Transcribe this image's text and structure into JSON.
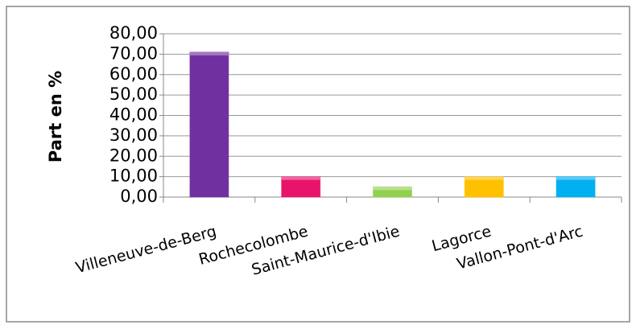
{
  "chart_data": {
    "type": "bar",
    "ylabel": "Part en %",
    "categories": [
      "Villeneuve-de-Berg",
      "Rochecolombe",
      "Saint-Maurice-d'Ibie",
      "Lagorce",
      "Vallon-Pont-d'Arc"
    ],
    "values": [
      71,
      10,
      5,
      10,
      10
    ],
    "colors": [
      "#7030a0",
      "#e8146c",
      "#92d050",
      "#ffc000",
      "#00b0f0"
    ],
    "ylim": [
      0,
      80
    ],
    "yticks": [
      {
        "value": 0,
        "label": "0,00"
      },
      {
        "value": 10,
        "label": "10,00"
      },
      {
        "value": 20,
        "label": "20,00"
      },
      {
        "value": 30,
        "label": "30,00"
      },
      {
        "value": 40,
        "label": "40,00"
      },
      {
        "value": 50,
        "label": "50,00"
      },
      {
        "value": 60,
        "label": "60,00"
      },
      {
        "value": 70,
        "label": "70,00"
      },
      {
        "value": 80,
        "label": "80,00"
      }
    ],
    "grid": true
  }
}
